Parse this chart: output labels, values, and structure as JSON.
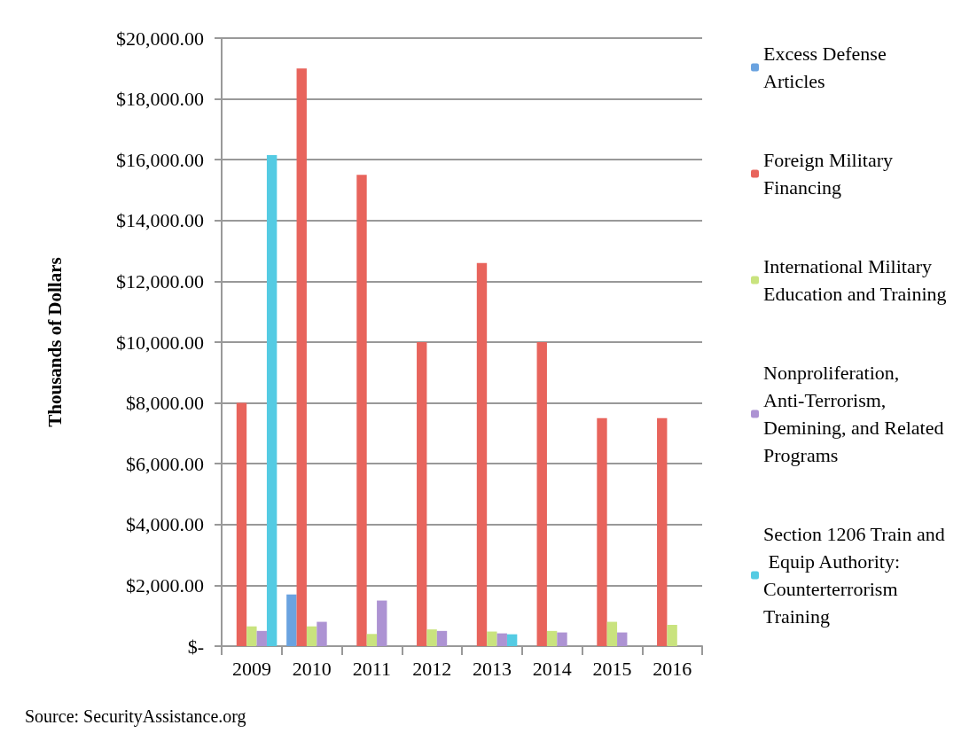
{
  "chart_data": {
    "type": "bar",
    "ylabel": "Thousands of Dollars",
    "categories": [
      "2009",
      "2010",
      "2011",
      "2012",
      "2013",
      "2014",
      "2015",
      "2016"
    ],
    "series": [
      {
        "name": "Excess Defense Articles",
        "color": "#6aa3e0",
        "values": [
          null,
          1700,
          null,
          null,
          null,
          null,
          null,
          null
        ]
      },
      {
        "name": "Foreign Military Financing",
        "color": "#e8645c",
        "values": [
          8000,
          19000,
          15500,
          10000,
          12600,
          10000,
          7500,
          7500
        ]
      },
      {
        "name": "International Military Education and Training",
        "color": "#c9e37e",
        "values": [
          650,
          650,
          400,
          550,
          480,
          500,
          800,
          700
        ]
      },
      {
        "name": "Nonproliferation, Anti-Terrorism, Demining, and Related Programs",
        "color": "#ad93d3",
        "values": [
          500,
          800,
          1500,
          500,
          420,
          450,
          450,
          null
        ]
      },
      {
        "name": "Section 1206 Train and Equip Authority: Counterterrorism Training",
        "color": "#54cbe3",
        "values": [
          16150,
          null,
          null,
          null,
          390,
          null,
          null,
          null
        ]
      }
    ],
    "ylim": [
      0,
      20000
    ],
    "yticks": [
      {
        "value": 0,
        "label": "$-"
      },
      {
        "value": 2000,
        "label": "$2,000.00"
      },
      {
        "value": 4000,
        "label": "$4,000.00"
      },
      {
        "value": 6000,
        "label": "$6,000.00"
      },
      {
        "value": 8000,
        "label": "$8,000.00"
      },
      {
        "value": 10000,
        "label": "$10,000.00"
      },
      {
        "value": 12000,
        "label": "$12,000.00"
      },
      {
        "value": 14000,
        "label": "$14,000.00"
      },
      {
        "value": 16000,
        "label": "$16,000.00"
      },
      {
        "value": 18000,
        "label": "$18,000.00"
      },
      {
        "value": 20000,
        "label": "$20,000.00"
      }
    ],
    "grid": "y",
    "legend": "right",
    "annotations": [
      "Source: SecurityAssistance.org"
    ]
  }
}
